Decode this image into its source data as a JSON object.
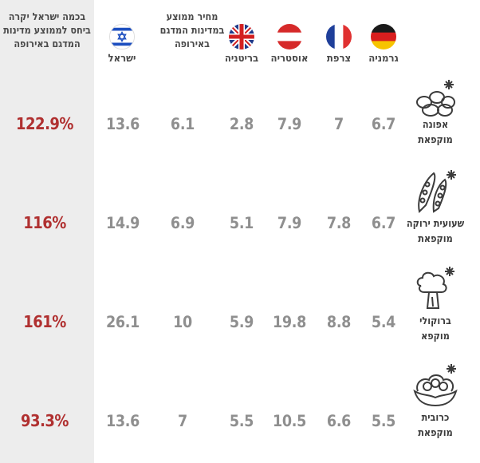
{
  "header": {
    "pct_title": [
      "בכמה ישראל יקרה",
      "ביחס לממוצע מדינות",
      "המדגם באירופה"
    ],
    "avg_title": [
      "מחיר ממוצע",
      "במדינות המדגם",
      "באירופה"
    ]
  },
  "countries": [
    {
      "name": "גרמניה",
      "flag": "germany-flag-icon"
    },
    {
      "name": "צרפת",
      "flag": "france-flag-icon"
    },
    {
      "name": "אוסטריה",
      "flag": "austria-flag-icon"
    },
    {
      "name": "בריטניה",
      "flag": "uk-flag-icon"
    },
    {
      "name": "ישראל",
      "flag": "israel-flag-icon"
    }
  ],
  "colors": {
    "accent": "#b03030",
    "number": "#8f8f8f",
    "panel": "#ededed"
  },
  "products": [
    {
      "name": [
        "אפונה",
        "מוקפאת"
      ],
      "icon": "peas-icon",
      "values": {
        "germany": "6.7",
        "france": "7",
        "austria": "7.9",
        "uk": "2.8",
        "avg": "6.1",
        "israel": "13.6"
      },
      "pct": "122.9%"
    },
    {
      "name": [
        "שעועית ירוקה",
        "מוקפאת"
      ],
      "icon": "green-beans-icon",
      "values": {
        "germany": "6.7",
        "france": "7.8",
        "austria": "7.9",
        "uk": "5.1",
        "avg": "6.9",
        "israel": "14.9"
      },
      "pct": "116%"
    },
    {
      "name": [
        "ברוקולי",
        "מוקפא"
      ],
      "icon": "broccoli-icon",
      "values": {
        "germany": "5.4",
        "france": "8.8",
        "austria": "19.8",
        "uk": "5.9",
        "avg": "10",
        "israel": "26.1"
      },
      "pct": "161%"
    },
    {
      "name": [
        "כרובית",
        "מוקפאת"
      ],
      "icon": "cauliflower-icon",
      "values": {
        "germany": "5.5",
        "france": "6.6",
        "austria": "10.5",
        "uk": "5.5",
        "avg": "7",
        "israel": "13.6"
      },
      "pct": "93.3%"
    }
  ],
  "chart_data": {
    "type": "table",
    "columns": [
      "גרמניה",
      "צרפת",
      "אוסטריה",
      "בריטניה",
      "מחיר ממוצע במדינות המדגם באירופה",
      "ישראל",
      "בכמה ישראל יקרה ביחס לממוצע מדינות המדגם באירופה"
    ],
    "rows": [
      {
        "product": "אפונה מוקפאת",
        "values": [
          6.7,
          7,
          7.9,
          2.8,
          6.1,
          13.6
        ],
        "pct": 122.9
      },
      {
        "product": "שעועית ירוקה מוקפאת",
        "values": [
          6.7,
          7.8,
          7.9,
          5.1,
          6.9,
          14.9
        ],
        "pct": 116
      },
      {
        "product": "ברוקולי מוקפא",
        "values": [
          5.4,
          8.8,
          19.8,
          5.9,
          10,
          26.1
        ],
        "pct": 161
      },
      {
        "product": "כרובית מוקפאת",
        "values": [
          5.5,
          6.6,
          10.5,
          5.5,
          7,
          13.6
        ],
        "pct": 93.3
      }
    ]
  }
}
